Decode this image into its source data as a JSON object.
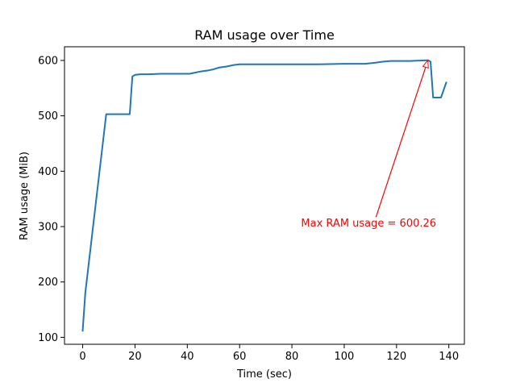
{
  "chart_data": {
    "type": "line",
    "title": "RAM usage over Time",
    "xlabel": "Time (sec)",
    "ylabel": "RAM usage (MiB)",
    "xlim": [
      -6.95,
      145.95
    ],
    "ylim": [
      87.5,
      624.7
    ],
    "xticks": [
      0,
      20,
      40,
      60,
      80,
      100,
      120,
      140
    ],
    "yticks": [
      100,
      200,
      300,
      400,
      500,
      600
    ],
    "grid": false,
    "legend": "none",
    "series": [
      {
        "color": "#1f77b4",
        "x": [
          0,
          1,
          9,
          10,
          18,
          19,
          20,
          22,
          25,
          30,
          35,
          41,
          42,
          45,
          48,
          50,
          52,
          55,
          58,
          60,
          65,
          70,
          80,
          90,
          100,
          108,
          112,
          115,
          118,
          120,
          125,
          130,
          132,
          133,
          134,
          135,
          137,
          139
        ],
        "y": [
          112,
          180,
          503,
          503,
          503,
          571,
          574,
          575,
          575,
          576,
          576,
          576,
          577,
          580,
          582,
          584,
          587,
          589,
          592,
          593,
          593,
          593,
          593,
          593,
          594,
          594,
          596,
          598,
          599,
          599,
          599,
          600,
          600.26,
          598,
          533,
          533,
          533,
          560
        ]
      }
    ],
    "annotations": [
      {
        "text": "Max RAM usage = 600.26",
        "color": "#ff0000",
        "point": [
          132,
          600.26
        ],
        "text_position": [
          83.5,
          300
        ]
      }
    ]
  }
}
